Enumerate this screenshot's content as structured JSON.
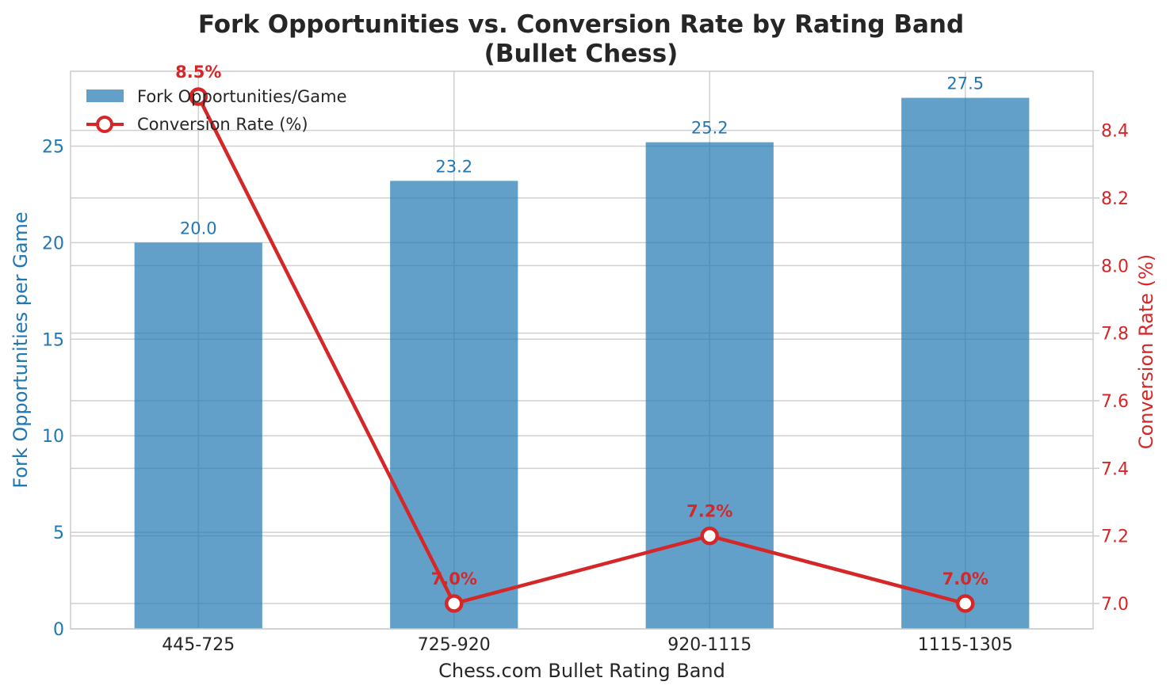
{
  "chart_data": {
    "type": "bar+line",
    "title": "Fork Opportunities vs. Conversion Rate by Rating Band",
    "subtitle": "(Bullet Chess)",
    "xlabel": "Chess.com Bullet Rating Band",
    "ylabel_left": "Fork Opportunities per Game",
    "ylabel_right": "Conversion Rate (%)",
    "categories": [
      "445-725",
      "725-920",
      "920-1115",
      "1115-1305"
    ],
    "ylim_left": [
      0,
      28.875
    ],
    "ylim_right": [
      6.925,
      8.575
    ],
    "yticks_left": [
      "0",
      "5",
      "10",
      "15",
      "20",
      "25"
    ],
    "yticks_right": [
      "7.0",
      "7.2",
      "7.4",
      "7.6",
      "7.8",
      "8.0",
      "8.2",
      "8.4"
    ],
    "series": [
      {
        "name": "Fork Opportunities/Game",
        "type": "bar",
        "axis": "left",
        "values": [
          20.0,
          23.2,
          25.2,
          27.5
        ],
        "labels": [
          "20.0",
          "23.2",
          "25.2",
          "27.5"
        ],
        "color": "#1f77b4"
      },
      {
        "name": "Conversion Rate (%)",
        "type": "line",
        "axis": "right",
        "values": [
          8.5,
          7.0,
          7.2,
          7.0
        ],
        "labels": [
          "8.5%",
          "7.0%",
          "7.2%",
          "7.0%"
        ],
        "color": "#d62728"
      }
    ],
    "grid": true,
    "legend": "top-left"
  }
}
